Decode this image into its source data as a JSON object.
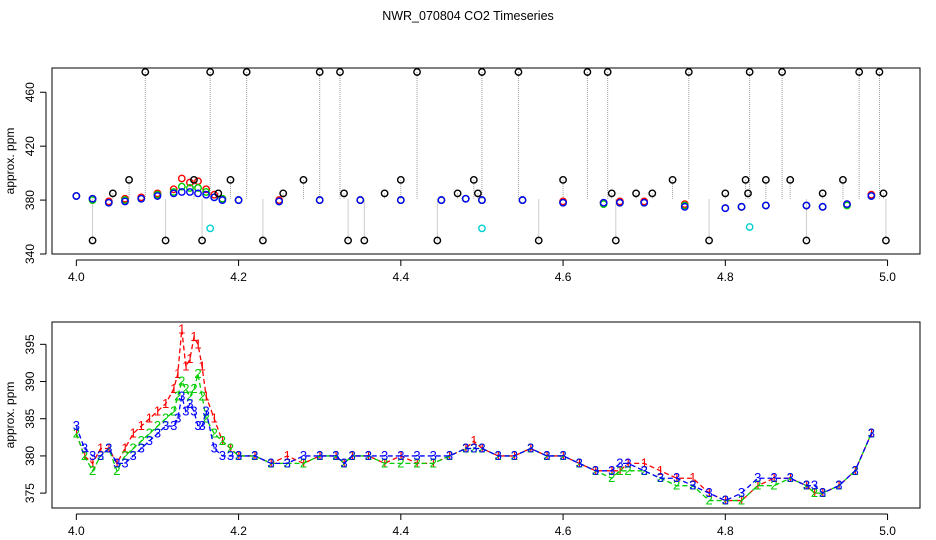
{
  "title": "NWR_070804  CO2 Timeseries",
  "colors": {
    "series1": "#ff0000",
    "series2": "#00cd00",
    "series3": "#0000ff",
    "spike": "#000000",
    "cyan": "#00d0d0",
    "vline": "#9a9a9a"
  },
  "chart_data": [
    {
      "type": "scatter",
      "ylabel": "approx. ppm",
      "xlim": [
        3.97,
        5.04
      ],
      "ylim": [
        340,
        478
      ],
      "xticks": [
        "4.0",
        "4.2",
        "4.4",
        "4.6",
        "4.8",
        "5.0"
      ],
      "xtick_values": [
        4.0,
        4.2,
        4.4,
        4.6,
        4.8,
        5.0
      ],
      "yticks": [
        "340",
        "380",
        "420",
        "460"
      ],
      "ytick_values": [
        340,
        380,
        420,
        460
      ],
      "series": [
        {
          "color": "#ff0000",
          "x": [
            4.0,
            4.02,
            4.04,
            4.06,
            4.08,
            4.1,
            4.12,
            4.13,
            4.14,
            4.15,
            4.16,
            4.17,
            4.18,
            4.2,
            4.25,
            4.3,
            4.35,
            4.4,
            4.45,
            4.48,
            4.5,
            4.55,
            4.6,
            4.65,
            4.67,
            4.7,
            4.75,
            4.8,
            4.82,
            4.85,
            4.9,
            4.92,
            4.95,
            4.98
          ],
          "y": [
            383,
            381,
            379,
            381,
            382,
            385,
            388,
            396,
            393,
            394,
            388,
            384,
            381,
            380,
            380,
            380,
            380,
            380,
            380,
            381,
            380,
            380,
            379,
            378,
            379,
            379,
            377,
            374,
            375,
            376,
            376,
            375,
            377,
            384
          ]
        },
        {
          "color": "#00cd00",
          "x": [
            4.0,
            4.02,
            4.04,
            4.06,
            4.08,
            4.1,
            4.12,
            4.13,
            4.14,
            4.15,
            4.16,
            4.17,
            4.18,
            4.2,
            4.25,
            4.3,
            4.35,
            4.4,
            4.45,
            4.48,
            4.5,
            4.55,
            4.6,
            4.65,
            4.67,
            4.7,
            4.75,
            4.8,
            4.82,
            4.85,
            4.9,
            4.92,
            4.95,
            4.98
          ],
          "y": [
            383,
            380,
            378,
            380,
            381,
            384,
            386,
            390,
            389,
            389,
            386,
            382,
            381,
            380,
            379,
            380,
            380,
            380,
            380,
            381,
            380,
            380,
            378,
            377,
            378,
            378,
            376,
            374,
            375,
            376,
            376,
            375,
            376,
            383
          ]
        },
        {
          "color": "#0000ff",
          "x": [
            4.0,
            4.02,
            4.04,
            4.06,
            4.08,
            4.1,
            4.12,
            4.13,
            4.14,
            4.15,
            4.16,
            4.17,
            4.18,
            4.2,
            4.25,
            4.3,
            4.35,
            4.4,
            4.45,
            4.48,
            4.5,
            4.55,
            4.6,
            4.65,
            4.67,
            4.7,
            4.75,
            4.8,
            4.82,
            4.85,
            4.9,
            4.92,
            4.95,
            4.98
          ],
          "y": [
            383,
            381,
            378,
            379,
            381,
            383,
            385,
            386,
            386,
            385,
            384,
            382,
            380,
            380,
            379,
            380,
            380,
            380,
            380,
            381,
            380,
            380,
            378,
            378,
            378,
            378,
            375,
            374,
            375,
            376,
            376,
            375,
            377,
            383
          ]
        },
        {
          "color": "#000000",
          "x": [
            4.02,
            4.045,
            4.065,
            4.085,
            4.11,
            4.145,
            4.155,
            4.165,
            4.175,
            4.19,
            4.21,
            4.23,
            4.255,
            4.28,
            4.3,
            4.325,
            4.33,
            4.335,
            4.355,
            4.38,
            4.4,
            4.42,
            4.445,
            4.47,
            4.49,
            4.495,
            4.5,
            4.545,
            4.57,
            4.6,
            4.63,
            4.655,
            4.66,
            4.665,
            4.69,
            4.71,
            4.735,
            4.755,
            4.78,
            4.8,
            4.825,
            4.828,
            4.83,
            4.85,
            4.87,
            4.88,
            4.9,
            4.92,
            4.945,
            4.965,
            4.99,
            4.995,
            4.998
          ],
          "y": [
            350,
            385,
            395,
            475,
            350,
            395,
            350,
            475,
            385,
            395,
            475,
            350,
            385,
            395,
            475,
            475,
            385,
            350,
            350,
            385,
            395,
            475,
            350,
            385,
            395,
            385,
            475,
            475,
            350,
            395,
            475,
            475,
            385,
            350,
            385,
            385,
            395,
            475,
            350,
            385,
            395,
            385,
            475,
            395,
            475,
            395,
            350,
            385,
            395,
            475,
            475,
            385,
            350
          ]
        },
        {
          "color": "#00d0d0",
          "x": [
            4.165,
            4.5,
            4.83
          ],
          "y": [
            359,
            359,
            360
          ]
        }
      ]
    },
    {
      "type": "line",
      "ylabel": "approx. ppm",
      "xlim": [
        3.97,
        5.04
      ],
      "ylim": [
        373,
        398
      ],
      "xticks": [
        "4.0",
        "4.2",
        "4.4",
        "4.6",
        "4.8",
        "5.0"
      ],
      "xtick_values": [
        4.0,
        4.2,
        4.4,
        4.6,
        4.8,
        5.0
      ],
      "yticks": [
        "375",
        "380",
        "385",
        "390",
        "395"
      ],
      "ytick_values": [
        375,
        380,
        385,
        390,
        395
      ],
      "series": [
        {
          "name": "1",
          "color": "#ff0000",
          "x": [
            4.0,
            4.01,
            4.02,
            4.03,
            4.04,
            4.05,
            4.06,
            4.07,
            4.08,
            4.09,
            4.1,
            4.11,
            4.12,
            4.125,
            4.13,
            4.135,
            4.14,
            4.145,
            4.15,
            4.155,
            4.16,
            4.17,
            4.18,
            4.19,
            4.2,
            4.22,
            4.24,
            4.26,
            4.28,
            4.3,
            4.32,
            4.33,
            4.34,
            4.36,
            4.38,
            4.4,
            4.42,
            4.44,
            4.46,
            4.48,
            4.49,
            4.5,
            4.52,
            4.54,
            4.56,
            4.58,
            4.6,
            4.62,
            4.64,
            4.66,
            4.67,
            4.68,
            4.7,
            4.72,
            4.74,
            4.76,
            4.78,
            4.8,
            4.82,
            4.84,
            4.86,
            4.88,
            4.9,
            4.91,
            4.92,
            4.94,
            4.96,
            4.98
          ],
          "y": [
            383,
            380,
            379,
            381,
            381,
            379,
            381,
            383,
            384,
            385,
            386,
            387,
            389,
            391,
            397,
            392,
            393,
            396,
            395,
            392,
            388,
            385,
            382,
            381,
            380,
            380,
            379,
            380,
            379,
            380,
            380,
            379,
            380,
            380,
            379,
            380,
            379,
            379,
            380,
            381,
            382,
            381,
            380,
            380,
            381,
            380,
            380,
            379,
            378,
            378,
            378,
            379,
            379,
            378,
            377,
            377,
            375,
            374,
            374,
            376,
            377,
            377,
            376,
            375,
            375,
            376,
            378,
            383
          ]
        },
        {
          "name": "2",
          "color": "#00cd00",
          "x": [
            4.0,
            4.01,
            4.02,
            4.03,
            4.04,
            4.05,
            4.06,
            4.07,
            4.08,
            4.09,
            4.1,
            4.11,
            4.12,
            4.125,
            4.13,
            4.135,
            4.14,
            4.145,
            4.15,
            4.155,
            4.16,
            4.17,
            4.18,
            4.19,
            4.2,
            4.22,
            4.24,
            4.26,
            4.28,
            4.3,
            4.32,
            4.33,
            4.34,
            4.36,
            4.38,
            4.4,
            4.42,
            4.44,
            4.46,
            4.48,
            4.49,
            4.5,
            4.52,
            4.54,
            4.56,
            4.58,
            4.6,
            4.62,
            4.64,
            4.66,
            4.67,
            4.68,
            4.7,
            4.72,
            4.74,
            4.76,
            4.78,
            4.8,
            4.82,
            4.84,
            4.86,
            4.88,
            4.9,
            4.91,
            4.92,
            4.94,
            4.96,
            4.98
          ],
          "y": [
            383,
            380,
            378,
            380,
            381,
            378,
            380,
            381,
            382,
            383,
            384,
            385,
            386,
            388,
            390,
            389,
            388,
            389,
            391,
            388,
            385,
            383,
            382,
            381,
            380,
            380,
            379,
            379,
            379,
            380,
            380,
            379,
            380,
            380,
            379,
            379,
            379,
            379,
            380,
            381,
            381,
            381,
            380,
            380,
            381,
            380,
            380,
            379,
            378,
            377,
            378,
            378,
            378,
            377,
            376,
            376,
            374,
            374,
            374,
            376,
            376,
            377,
            376,
            375,
            375,
            376,
            378,
            383
          ]
        },
        {
          "name": "3",
          "color": "#0000ff",
          "x": [
            4.0,
            4.01,
            4.02,
            4.03,
            4.04,
            4.05,
            4.06,
            4.07,
            4.08,
            4.09,
            4.1,
            4.11,
            4.12,
            4.125,
            4.13,
            4.135,
            4.14,
            4.145,
            4.15,
            4.155,
            4.16,
            4.17,
            4.18,
            4.19,
            4.2,
            4.22,
            4.24,
            4.26,
            4.28,
            4.3,
            4.32,
            4.33,
            4.34,
            4.36,
            4.38,
            4.4,
            4.42,
            4.44,
            4.46,
            4.48,
            4.49,
            4.5,
            4.52,
            4.54,
            4.56,
            4.58,
            4.6,
            4.62,
            4.64,
            4.66,
            4.67,
            4.68,
            4.7,
            4.72,
            4.74,
            4.76,
            4.78,
            4.8,
            4.82,
            4.84,
            4.86,
            4.88,
            4.9,
            4.91,
            4.92,
            4.94,
            4.96,
            4.98
          ],
          "y": [
            384,
            381,
            380,
            380,
            381,
            379,
            379,
            380,
            381,
            382,
            383,
            384,
            384,
            385,
            388,
            386,
            387,
            386,
            384,
            384,
            386,
            381,
            380,
            380,
            380,
            380,
            379,
            379,
            380,
            380,
            380,
            379,
            380,
            380,
            380,
            380,
            380,
            380,
            380,
            381,
            381,
            381,
            380,
            380,
            381,
            380,
            380,
            379,
            378,
            378,
            379,
            379,
            378,
            377,
            377,
            376,
            375,
            374,
            375,
            377,
            377,
            377,
            376,
            376,
            375,
            376,
            378,
            383
          ]
        }
      ]
    }
  ]
}
